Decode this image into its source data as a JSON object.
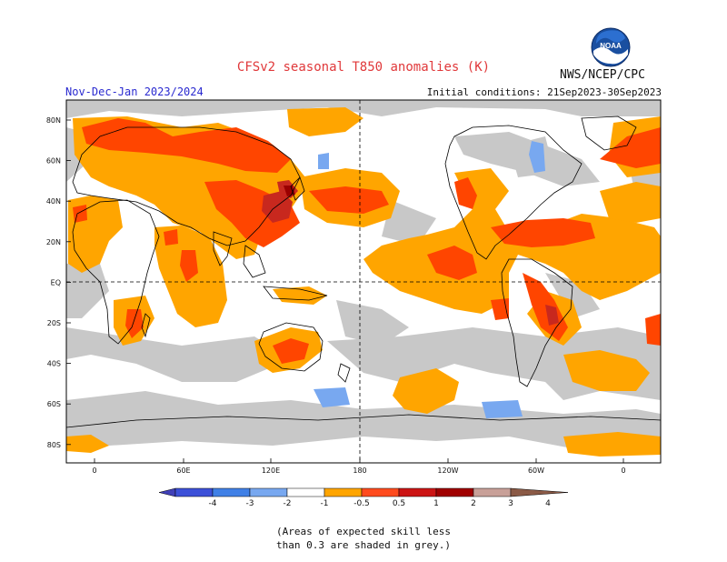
{
  "header": {
    "title": "CFSv2 seasonal T850 anomalies (K)",
    "period": "Nov-Dec-Jan 2023/2024",
    "initial_conditions": "Initial conditions: 21Sep2023-30Sep2023",
    "organization": "NWS/NCEP/CPC",
    "logo_text": "NOAA"
  },
  "map": {
    "lat_labels": [
      "80N",
      "60N",
      "40N",
      "20N",
      "EQ",
      "20S",
      "40S",
      "60S",
      "80S"
    ],
    "lon_labels": [
      "0",
      "60E",
      "120E",
      "180",
      "120W",
      "60W",
      "0"
    ],
    "colors": {
      "ocean_white": "#ffffff",
      "grey_low_skill": "#c8c8c8",
      "pos_0_5_1": "#ffa500",
      "pos_1_2": "#ff4500",
      "pos_2_3": "#c8281e",
      "pos_3_4": "#9b0000",
      "coast": "#000000"
    }
  },
  "colorbar": {
    "labels": [
      "-4",
      "-3",
      "-2",
      "-1",
      "-0.5",
      "0.5",
      "1",
      "2",
      "3",
      "4"
    ],
    "colors": [
      "#4040b8",
      "#3c50d8",
      "#4080e6",
      "#78a8f0",
      "#ffffff",
      "#ffa500",
      "#ff4b1e",
      "#cc1414",
      "#a00000",
      "#c8a098",
      "#8b5a46"
    ]
  },
  "footnote": {
    "line1": "(Areas of expected skill less",
    "line2": "than 0.3 are shaded in grey.)"
  }
}
